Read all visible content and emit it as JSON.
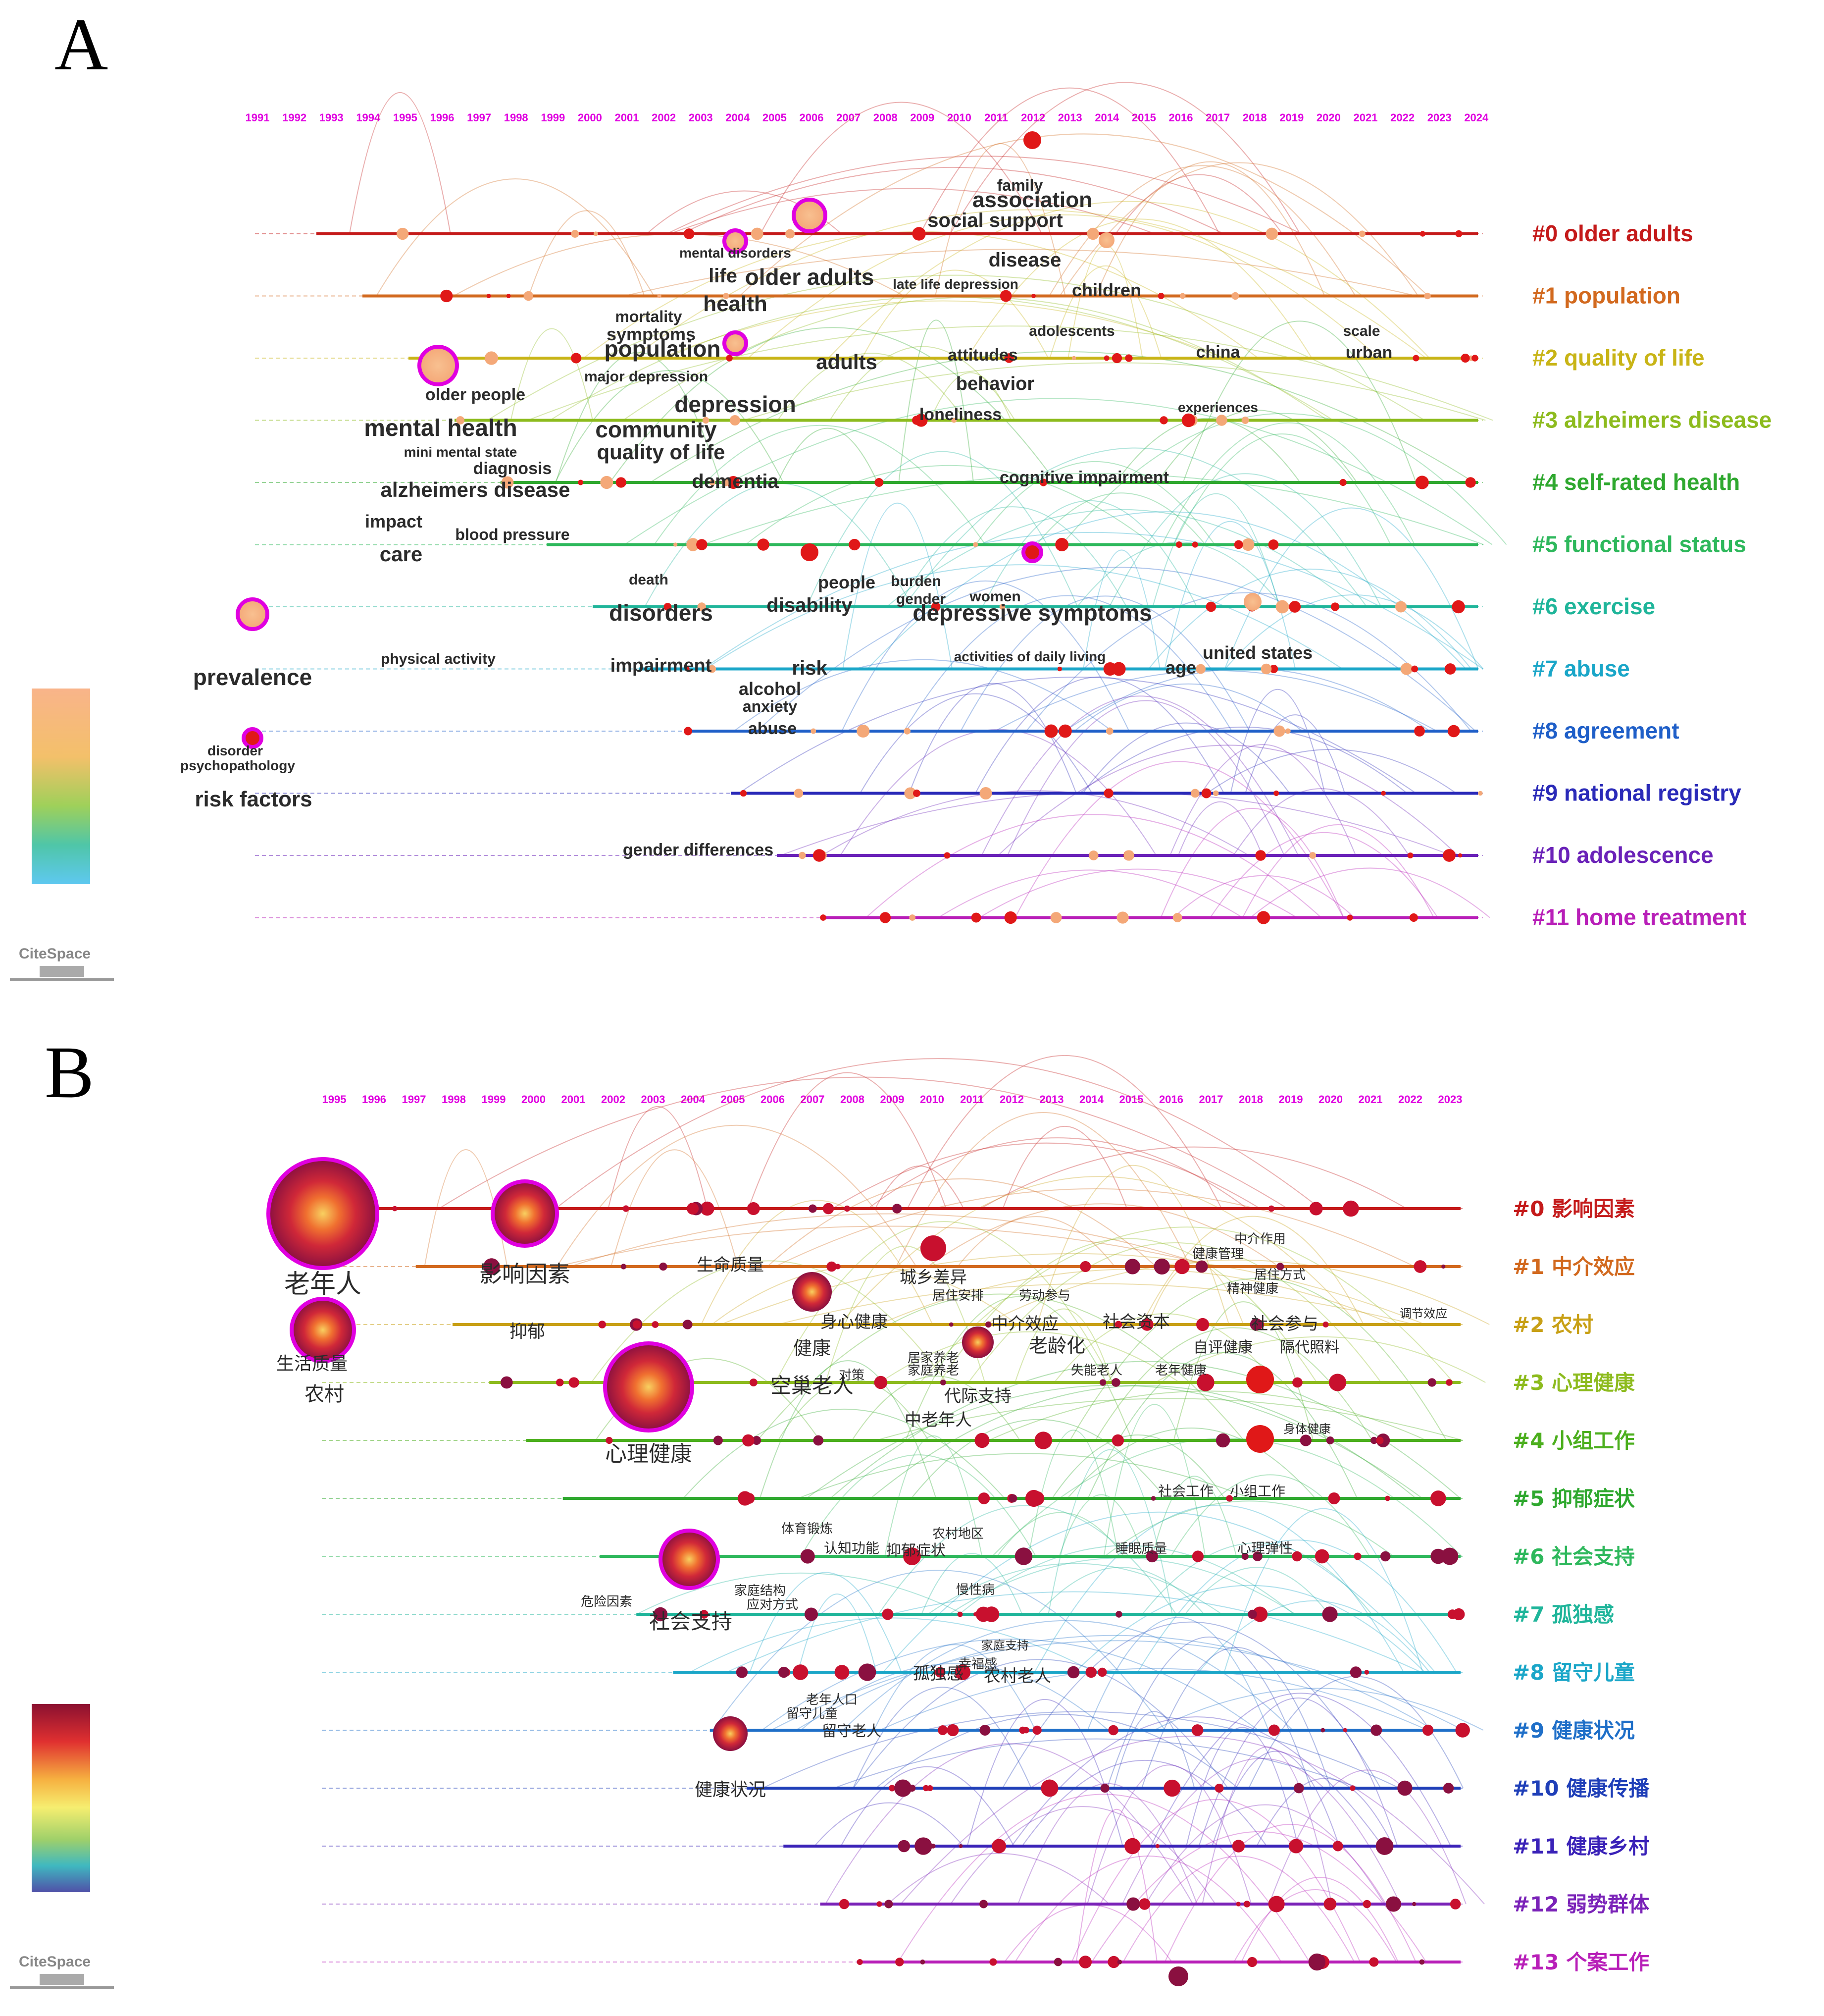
{
  "panels": [
    {
      "id": "A",
      "label": "A",
      "years": [
        "1991",
        "1992",
        "1993",
        "1994",
        "1995",
        "1996",
        "1997",
        "1998",
        "1999",
        "2000",
        "2001",
        "2002",
        "2003",
        "2004",
        "2005",
        "2006",
        "2007",
        "2008",
        "2009",
        "2010",
        "2011",
        "2012",
        "2013",
        "2014",
        "2015",
        "2016",
        "2017",
        "2018",
        "2019",
        "2020",
        "2021",
        "2022",
        "2023",
        "2024"
      ],
      "clusters": [
        {
          "label": "#0 older adults",
          "color": "#c41a1a"
        },
        {
          "label": "#1 population",
          "color": "#d2691e"
        },
        {
          "label": "#2 quality of life",
          "color": "#c8b416"
        },
        {
          "label": "#3 alzheimers disease",
          "color": "#8dbb1e"
        },
        {
          "label": "#4 self-rated health",
          "color": "#2fa82f"
        },
        {
          "label": "#5 functional status",
          "color": "#2eb85c"
        },
        {
          "label": "#6 exercise",
          "color": "#1fb59a"
        },
        {
          "label": "#7 abuse",
          "color": "#1aa6c8"
        },
        {
          "label": "#8 agreement",
          "color": "#1f5fc8"
        },
        {
          "label": "#9 national registry",
          "color": "#2a2ab8"
        },
        {
          "label": "#10 adolescence",
          "color": "#6a22b8"
        },
        {
          "label": "#11 home treatment",
          "color": "#b81fb8"
        }
      ],
      "keywords": [
        "family",
        "association",
        "social support",
        "mental disorders",
        "disease",
        "life",
        "older adults",
        "late life depression",
        "health",
        "children",
        "mortality",
        "symptoms",
        "adolescents",
        "population",
        "scale",
        "china",
        "urban",
        "adults",
        "attitudes",
        "major depression",
        "behavior",
        "older people",
        "depression",
        "experiences",
        "loneliness",
        "mental health",
        "community",
        "mini mental state",
        "quality of life",
        "diagnosis",
        "dementia",
        "cognitive impairment",
        "alzheimers disease",
        "impact",
        "blood pressure",
        "care",
        "death",
        "burden",
        "people",
        "gender",
        "women",
        "disorders",
        "disability",
        "depressive symptoms",
        "physical activity",
        "united states",
        "impairment",
        "activities of daily living",
        "risk",
        "age",
        "prevalence",
        "alcohol",
        "anxiety",
        "abuse",
        "disorder",
        "psychopathology",
        "risk factors",
        "gender differences"
      ],
      "logo": "CiteSpace"
    },
    {
      "id": "B",
      "label": "B",
      "years": [
        "1995",
        "1996",
        "1997",
        "1998",
        "1999",
        "2000",
        "2001",
        "2002",
        "2003",
        "2004",
        "2005",
        "2006",
        "2007",
        "2008",
        "2009",
        "2010",
        "2011",
        "2012",
        "2013",
        "2014",
        "2015",
        "2016",
        "2017",
        "2018",
        "2019",
        "2020",
        "2021",
        "2022",
        "2023"
      ],
      "clusters": [
        {
          "label": "#0 影响因素",
          "color": "#c41a1a"
        },
        {
          "label": "#1 中介效应",
          "color": "#d2691e"
        },
        {
          "label": "#2 农村",
          "color": "#c8a016"
        },
        {
          "label": "#3 心理健康",
          "color": "#8dbb1e"
        },
        {
          "label": "#4 小组工作",
          "color": "#4caf1e"
        },
        {
          "label": "#5 抑郁症状",
          "color": "#2fa82f"
        },
        {
          "label": "#6 社会支持",
          "color": "#2eb85c"
        },
        {
          "label": "#7 孤独感",
          "color": "#1fb59a"
        },
        {
          "label": "#8 留守儿童",
          "color": "#1aa6c8"
        },
        {
          "label": "#9 健康状况",
          "color": "#1f6fc8"
        },
        {
          "label": "#10 健康传播",
          "color": "#1f3fb8"
        },
        {
          "label": "#11 健康乡村",
          "color": "#3a22b8"
        },
        {
          "label": "#12 弱势群体",
          "color": "#7a22b8"
        },
        {
          "label": "#13 个案工作",
          "color": "#b81fb8"
        }
      ],
      "keywords": [
        "老年人",
        "影响因素",
        "生命质量",
        "中介作用",
        "健康管理",
        "城乡差异",
        "居住安排",
        "劳动参与",
        "居住方式",
        "精神健康",
        "身心健康",
        "中介效应",
        "社会资本",
        "社会参与",
        "调节效应",
        "抑郁",
        "健康",
        "老龄化",
        "自评健康",
        "隔代照料",
        "生活质量",
        "居家养老",
        "家庭养老",
        "空巢老人",
        "失能老人",
        "老年健康",
        "农村",
        "对策",
        "代际支持",
        "中老年人",
        "身体健康",
        "心理健康",
        "社会工作",
        "小组工作",
        "体育锻炼",
        "农村地区",
        "认知功能",
        "抑郁症状",
        "睡眠质量",
        "心理弹性",
        "危险因素",
        "家庭结构",
        "应对方式",
        "慢性病",
        "社会支持",
        "家庭支持",
        "幸福感",
        "孤独感",
        "农村老人",
        "老年人口",
        "留守儿童",
        "留守老人",
        "健康状况"
      ],
      "logo": "CiteSpace"
    }
  ]
}
